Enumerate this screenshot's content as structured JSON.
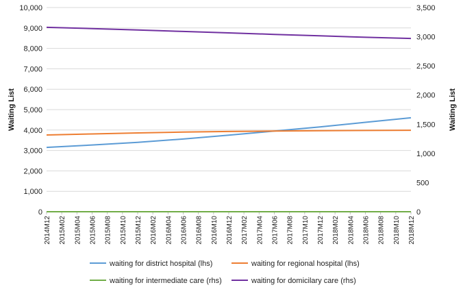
{
  "chart_data": {
    "type": "line",
    "y_left": {
      "label": "Waiting List",
      "lim": [
        0,
        10000
      ],
      "ticks": [
        "0",
        "1,000",
        "2,000",
        "3,000",
        "4,000",
        "5,000",
        "6,000",
        "7,000",
        "8,000",
        "9,000",
        "10,000"
      ],
      "tick_values": [
        0,
        1000,
        2000,
        3000,
        4000,
        5000,
        6000,
        7000,
        8000,
        9000,
        10000
      ]
    },
    "y_right": {
      "label": "Waiting List",
      "lim": [
        0,
        3500
      ],
      "ticks": [
        "0",
        "500",
        "1,000",
        "1,500",
        "2,000",
        "2,500",
        "3,000",
        "3,500"
      ],
      "tick_values": [
        0,
        500,
        1000,
        1500,
        2000,
        2500,
        3000,
        3500
      ]
    },
    "x_labels": [
      "2014M12",
      "2015M02",
      "2015M04",
      "2015M06",
      "2015M08",
      "2015M10",
      "2015M12",
      "2016M02",
      "2016M04",
      "2016M06",
      "2016M08",
      "2016M10",
      "2016M12",
      "2017M02",
      "2017M04",
      "2017M06",
      "2017M08",
      "2017M10",
      "2017M12",
      "2018M02",
      "2018M04",
      "2018M06",
      "2018M08",
      "2018M10",
      "2018M12"
    ],
    "x_start": "2014-12",
    "x_end": "2018-12",
    "grid": "horizontal",
    "legend_position": "bottom",
    "series": [
      {
        "name": "waiting for district hospital (lhs)",
        "axis": "left",
        "color": "#5b9bd5",
        "x": [
          "2014-12",
          "2015-06",
          "2015-12",
          "2016-06",
          "2016-12",
          "2017-06",
          "2017-12",
          "2018-06",
          "2018-12"
        ],
        "values": [
          3150,
          3270,
          3400,
          3560,
          3750,
          3950,
          4150,
          4380,
          4600
        ]
      },
      {
        "name": "waiting for regional hospital (lhs)",
        "axis": "left",
        "color": "#ed7d31",
        "x": [
          "2014-12",
          "2015-06",
          "2015-12",
          "2016-06",
          "2016-12",
          "2017-06",
          "2017-12",
          "2018-06",
          "2018-12"
        ],
        "values": [
          3760,
          3810,
          3860,
          3900,
          3930,
          3950,
          3970,
          3980,
          3990
        ]
      },
      {
        "name": "waiting for intermediate care (rhs)",
        "axis": "right",
        "color": "#70ad47",
        "x": [
          "2014-12",
          "2018-12"
        ],
        "values": [
          0,
          0
        ]
      },
      {
        "name": "waiting for domicilary care (rhs)",
        "axis": "right",
        "color": "#7030a0",
        "x": [
          "2014-12",
          "2015-06",
          "2015-12",
          "2016-06",
          "2016-12",
          "2017-06",
          "2017-12",
          "2018-06",
          "2018-12"
        ],
        "values": [
          3160,
          3140,
          3115,
          3090,
          3065,
          3040,
          3015,
          2990,
          2970
        ]
      }
    ]
  }
}
